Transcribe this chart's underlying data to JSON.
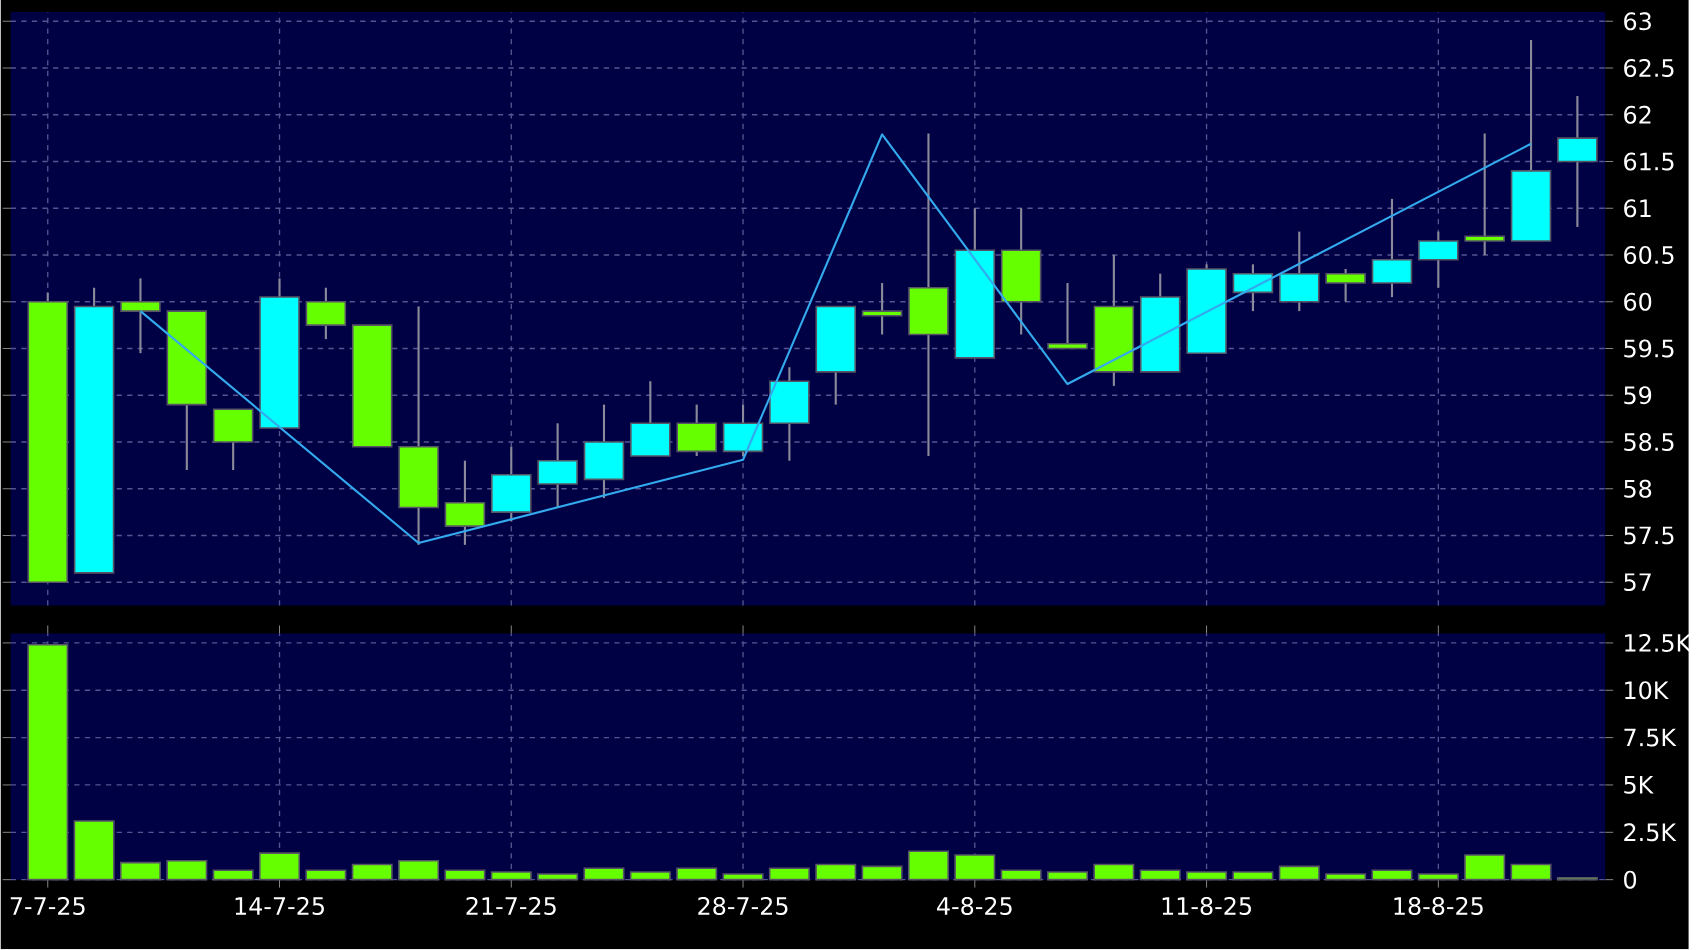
{
  "chart_data": [
    {
      "type": "candlestick",
      "categories": [
        null,
        null,
        null,
        null,
        null,
        null,
        null,
        null,
        null,
        null,
        null,
        null,
        null,
        null,
        null,
        null,
        null,
        null,
        null,
        null,
        null,
        null,
        null,
        null,
        null,
        null,
        null,
        null,
        null,
        null,
        null,
        null,
        null,
        null
      ],
      "ohlc": [
        [
          60.0,
          60.1,
          57.0,
          57.0
        ],
        [
          57.1,
          60.15,
          57.1,
          59.95
        ],
        [
          60.0,
          60.25,
          59.45,
          59.9
        ],
        [
          59.9,
          59.9,
          58.2,
          58.9
        ],
        [
          58.85,
          58.85,
          58.2,
          58.5
        ],
        [
          58.65,
          60.25,
          58.65,
          60.05
        ],
        [
          60.0,
          60.15,
          59.6,
          59.75
        ],
        [
          59.75,
          59.75,
          58.45,
          58.45
        ],
        [
          58.45,
          59.95,
          57.4,
          57.8
        ],
        [
          57.85,
          58.3,
          57.4,
          57.6
        ],
        [
          57.75,
          58.45,
          57.65,
          58.15
        ],
        [
          58.05,
          58.7,
          57.8,
          58.3
        ],
        [
          58.1,
          58.9,
          57.9,
          58.5
        ],
        [
          58.35,
          59.15,
          58.35,
          58.7
        ],
        [
          58.7,
          58.9,
          58.35,
          58.4
        ],
        [
          58.4,
          58.9,
          58.35,
          58.7
        ],
        [
          58.7,
          59.3,
          58.3,
          59.15
        ],
        [
          59.25,
          59.95,
          58.9,
          59.95
        ],
        [
          59.9,
          60.2,
          59.65,
          59.85
        ],
        [
          60.15,
          61.8,
          58.35,
          59.65
        ],
        [
          59.4,
          61.0,
          59.4,
          60.55
        ],
        [
          60.55,
          61.0,
          59.65,
          60.0
        ],
        [
          59.55,
          60.2,
          59.5,
          59.5
        ],
        [
          59.95,
          60.5,
          59.1,
          59.25
        ],
        [
          59.25,
          60.3,
          59.25,
          60.05
        ],
        [
          59.45,
          60.4,
          59.45,
          60.35
        ],
        [
          60.1,
          60.4,
          59.9,
          60.3
        ],
        [
          60.0,
          60.75,
          59.9,
          60.3
        ],
        [
          60.3,
          60.35,
          60.0,
          60.2
        ],
        [
          60.2,
          61.1,
          60.05,
          60.45
        ],
        [
          60.45,
          60.75,
          60.15,
          60.65
        ],
        [
          60.7,
          61.8,
          60.5,
          60.65
        ],
        [
          60.65,
          62.8,
          60.65,
          61.4
        ],
        [
          61.5,
          62.2,
          60.8,
          61.75
        ]
      ],
      "colors": [
        "#66ff00",
        "#00ffff",
        "#66ff00",
        "#66ff00",
        "#66ff00",
        "#00ffff",
        "#66ff00",
        "#66ff00",
        "#66ff00",
        "#66ff00",
        "#00ffff",
        "#00ffff",
        "#00ffff",
        "#00ffff",
        "#66ff00",
        "#00ffff",
        "#00ffff",
        "#00ffff",
        "#66ff00",
        "#66ff00",
        "#00ffff",
        "#66ff00",
        "#66ff00",
        "#66ff00",
        "#00ffff",
        "#00ffff",
        "#00ffff",
        "#00ffff",
        "#66ff00",
        "#00ffff",
        "#00ffff",
        "#66ff00",
        "#00ffff",
        "#00ffff"
      ],
      "series": [
        {
          "type": "line",
          "color": "#33aaee",
          "values": [
            null,
            null,
            59.9,
            null,
            null,
            null,
            null,
            null,
            57.42,
            null,
            null,
            null,
            null,
            null,
            null,
            58.31,
            null,
            null,
            61.79,
            null,
            null,
            null,
            59.12,
            null,
            null,
            null,
            null,
            null,
            null,
            null,
            null,
            null,
            61.69,
            null
          ]
        }
      ],
      "ylim": [
        56.75,
        63.1
      ],
      "yticks": [
        57,
        57.5,
        58,
        58.5,
        59,
        59.5,
        60,
        60.5,
        61,
        61.5,
        62,
        62.5,
        63
      ],
      "grid": true,
      "tick_labels": "y"
    },
    {
      "type": "bar",
      "categories": [
        "7-7-25",
        null,
        null,
        null,
        null,
        "14-7-25",
        null,
        null,
        null,
        null,
        "21-7-25",
        null,
        null,
        null,
        null,
        "28-7-25",
        null,
        null,
        null,
        null,
        "4-8-25",
        null,
        null,
        null,
        null,
        "11-8-25",
        null,
        null,
        null,
        null,
        "18-8-25",
        null,
        null,
        null
      ],
      "values": [
        12400,
        3100,
        900,
        1000,
        500,
        1400,
        500,
        800,
        1000,
        500,
        400,
        300,
        600,
        400,
        600,
        300,
        600,
        800,
        700,
        1500,
        1300,
        500,
        400,
        800,
        500,
        400,
        400,
        700,
        300,
        500,
        300,
        1300,
        800,
        100
      ],
      "color": "#66ff00",
      "ylim": [
        0,
        13000
      ],
      "yticks": [
        0,
        {
          "value": 2500,
          "label": "2.5K"
        },
        {
          "value": 5000,
          "label": "5K"
        },
        {
          "value": 7500,
          "label": "7.5K"
        },
        {
          "value": 10000,
          "label": "10K"
        },
        {
          "value": 12500,
          "label": "12.5K"
        }
      ],
      "grid": true
    }
  ]
}
